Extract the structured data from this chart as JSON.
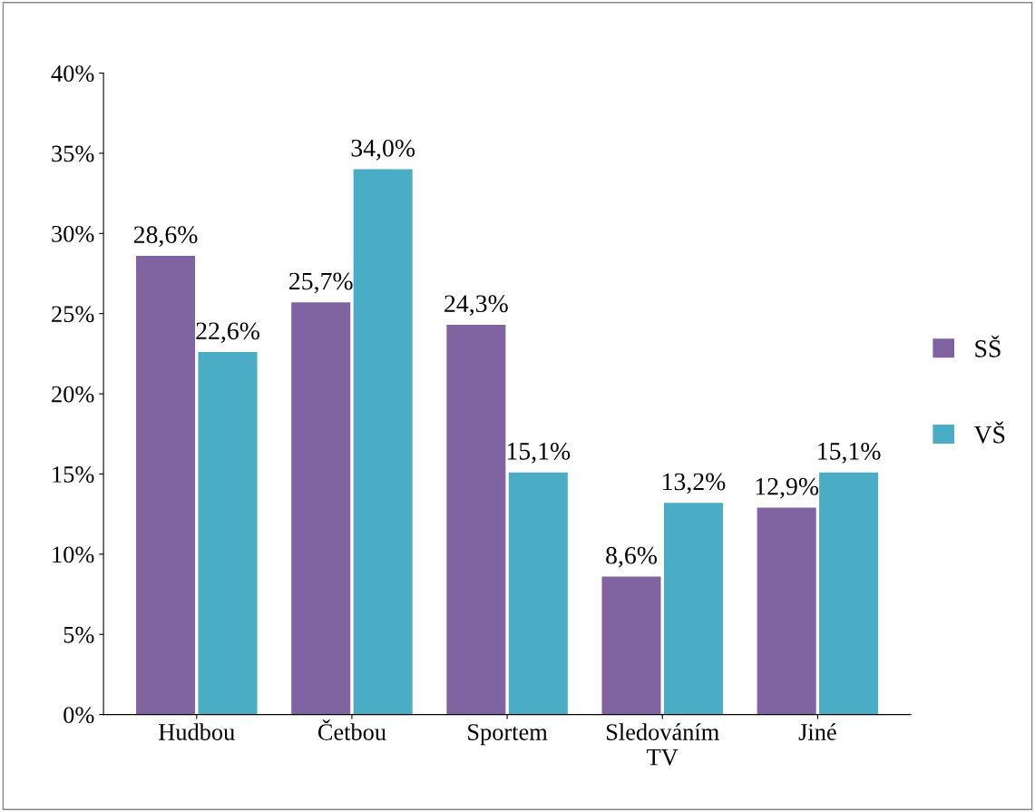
{
  "chart_data": {
    "type": "bar",
    "categories": [
      "Hudbou",
      "Četbou",
      "Sportem",
      "Sledováním\nTV",
      "Jiné"
    ],
    "series": [
      {
        "name": "SŠ",
        "color": "#8064a2",
        "values": [
          28.6,
          25.7,
          24.3,
          8.6,
          12.9
        ],
        "value_labels": [
          "28,6%",
          "25,7%",
          "24,3%",
          "8,6%",
          "12,9%"
        ]
      },
      {
        "name": "VŠ",
        "color": "#4bacc6",
        "values": [
          22.6,
          34.0,
          15.1,
          13.2,
          15.1
        ],
        "value_labels": [
          "22,6%",
          "34,0%",
          "15,1%",
          "13,2%",
          "15,1%"
        ]
      }
    ],
    "ylim": [
      0,
      40
    ],
    "yticks": [
      {
        "value": 0,
        "label": "0%"
      },
      {
        "value": 5,
        "label": "5%"
      },
      {
        "value": 10,
        "label": "10%"
      },
      {
        "value": 15,
        "label": "15%"
      },
      {
        "value": 20,
        "label": "20%"
      },
      {
        "value": 25,
        "label": "25%"
      },
      {
        "value": 30,
        "label": "30%"
      },
      {
        "value": 35,
        "label": "35%"
      },
      {
        "value": 40,
        "label": "40%"
      }
    ],
    "grid": false,
    "legend": "right"
  }
}
